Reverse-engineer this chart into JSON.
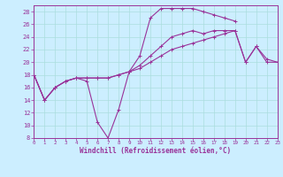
{
  "background_color": "#cceeff",
  "grid_color": "#aadddd",
  "line_color": "#993399",
  "xlabel": "Windchill (Refroidissement éolien,°C)",
  "xlim": [
    0,
    23
  ],
  "ylim": [
    8,
    29
  ],
  "yticks": [
    8,
    10,
    12,
    14,
    16,
    18,
    20,
    22,
    24,
    26,
    28
  ],
  "xticks": [
    0,
    1,
    2,
    3,
    4,
    5,
    6,
    7,
    8,
    9,
    10,
    11,
    12,
    13,
    14,
    15,
    16,
    17,
    18,
    19,
    20,
    21,
    22,
    23
  ],
  "series1_x": [
    0,
    1,
    2,
    3,
    4,
    5,
    6,
    7,
    8,
    9,
    10,
    11,
    12,
    13,
    14,
    15,
    16,
    17,
    18,
    19
  ],
  "series1_y": [
    18,
    14,
    16,
    17,
    17.5,
    17,
    10.5,
    8,
    12.5,
    18.5,
    21,
    27,
    28.5,
    28.5,
    28.5,
    28.5,
    28,
    27.5,
    27,
    26.5
  ],
  "series2_x": [
    0,
    1,
    2,
    3,
    4,
    5,
    6,
    7,
    8,
    9,
    10,
    11,
    12,
    13,
    14,
    15,
    16,
    17,
    18,
    19,
    20,
    21,
    22,
    23
  ],
  "series2_y": [
    18,
    14,
    16,
    17,
    17.5,
    17.5,
    17.5,
    17.5,
    18,
    18.5,
    19.5,
    21,
    22.5,
    24,
    24.5,
    25,
    24.5,
    25,
    25,
    25,
    20,
    22.5,
    20,
    20
  ],
  "series3_x": [
    0,
    1,
    2,
    3,
    4,
    5,
    6,
    7,
    8,
    9,
    10,
    11,
    12,
    13,
    14,
    15,
    16,
    17,
    18,
    19,
    20,
    21,
    22,
    23
  ],
  "series3_y": [
    18,
    14,
    16,
    17,
    17.5,
    17.5,
    17.5,
    17.5,
    18,
    18.5,
    19,
    20,
    21,
    22,
    22.5,
    23,
    23.5,
    24,
    24.5,
    25,
    20,
    22.5,
    20.5,
    20
  ]
}
